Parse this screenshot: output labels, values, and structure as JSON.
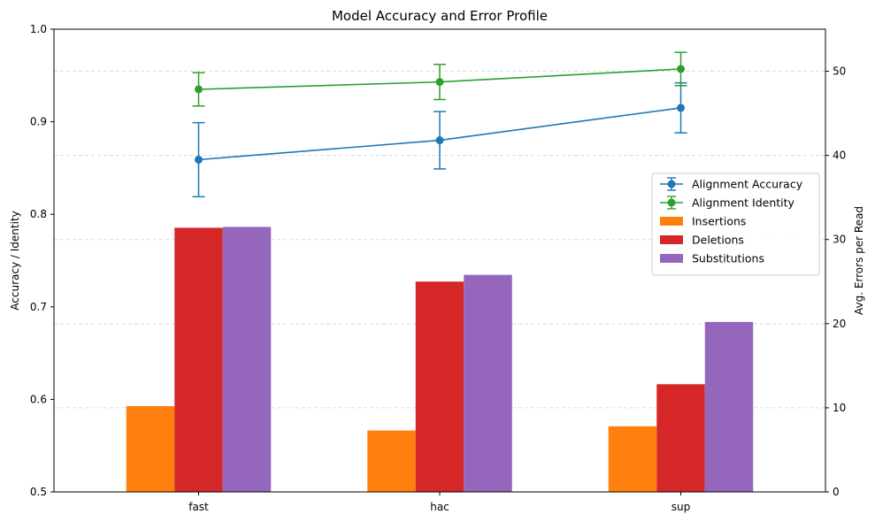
{
  "chart_data": {
    "type": "bar",
    "title": "Model Accuracy and Error Profile",
    "categories": [
      "fast",
      "hac",
      "sup"
    ],
    "xlabel": "",
    "y_left": {
      "label": "Accuracy / Identity",
      "lim": [
        0.5,
        1.0
      ],
      "ticks": [
        0.5,
        0.6,
        0.7,
        0.8,
        0.9,
        1.0
      ],
      "tick_labels": [
        "0.5",
        "0.6",
        "0.7",
        "0.8",
        "0.9",
        "1.0"
      ]
    },
    "y_right": {
      "label": "Avg. Errors per Read",
      "lim": [
        0,
        55
      ],
      "ticks": [
        0,
        10,
        20,
        30,
        40,
        50
      ],
      "tick_labels": [
        "0",
        "10",
        "20",
        "30",
        "40",
        "50"
      ]
    },
    "grid": "horizontal dashed",
    "legend_position": "center-right",
    "bar_series": [
      {
        "name": "Insertions",
        "color": "#ff7f0e",
        "values": [
          10.2,
          7.3,
          7.8
        ]
      },
      {
        "name": "Deletions",
        "color": "#d62728",
        "values": [
          31.4,
          25.0,
          12.8
        ]
      },
      {
        "name": "Substitutions",
        "color": "#9467bd",
        "values": [
          31.5,
          25.8,
          20.2
        ]
      }
    ],
    "line_series": [
      {
        "name": "Alignment Accuracy",
        "color": "#1f77b4",
        "values": [
          0.859,
          0.88,
          0.915
        ],
        "err": [
          0.04,
          0.031,
          0.027
        ]
      },
      {
        "name": "Alignment Identity",
        "color": "#2ca02c",
        "values": [
          0.935,
          0.943,
          0.957
        ],
        "err": [
          0.018,
          0.019,
          0.018
        ]
      }
    ]
  }
}
